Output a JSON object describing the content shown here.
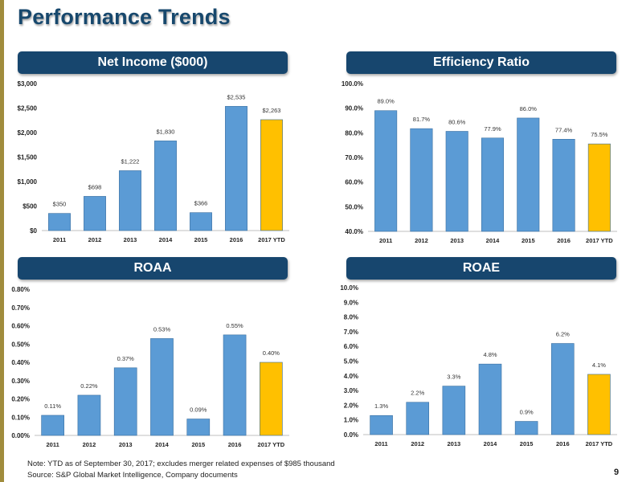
{
  "title": "Performance Trends",
  "colors": {
    "bar": "#5b9bd5",
    "highlight": "#ffc000",
    "header": "#17466e",
    "title": "#17486d"
  },
  "chart_data": [
    {
      "type": "bar",
      "title": "Net Income ($000)",
      "categories": [
        "2011",
        "2012",
        "2013",
        "2014",
        "2015",
        "2016",
        "2017 YTD"
      ],
      "values": [
        350,
        698,
        1222,
        1830,
        366,
        2535,
        2263
      ],
      "data_labels": [
        "$350",
        "$698",
        "$1,222",
        "$1,830",
        "$366",
        "$2,535",
        "$2,263"
      ],
      "ylim": [
        0,
        3000
      ],
      "yticks": [
        "$0",
        "$500",
        "$1,000",
        "$1,500",
        "$2,000",
        "$2,500",
        "$3,000"
      ],
      "highlight_index": 6
    },
    {
      "type": "bar",
      "title": "Efficiency Ratio",
      "categories": [
        "2011",
        "2012",
        "2013",
        "2014",
        "2015",
        "2016",
        "2017 YTD"
      ],
      "values": [
        89.0,
        81.7,
        80.6,
        77.9,
        86.0,
        77.4,
        75.5
      ],
      "data_labels": [
        "89.0%",
        "81.7%",
        "80.6%",
        "77.9%",
        "86.0%",
        "77.4%",
        "75.5%"
      ],
      "ylim": [
        40,
        100
      ],
      "yticks": [
        "40.0%",
        "50.0%",
        "60.0%",
        "70.0%",
        "80.0%",
        "90.0%",
        "100.0%"
      ],
      "highlight_index": 6
    },
    {
      "type": "bar",
      "title": "ROAA",
      "categories": [
        "2011",
        "2012",
        "2013",
        "2014",
        "2015",
        "2016",
        "2017 YTD"
      ],
      "values": [
        0.11,
        0.22,
        0.37,
        0.53,
        0.09,
        0.55,
        0.4
      ],
      "data_labels": [
        "0.11%",
        "0.22%",
        "0.37%",
        "0.53%",
        "0.09%",
        "0.55%",
        "0.40%"
      ],
      "ylim": [
        0,
        0.8
      ],
      "yticks": [
        "0.00%",
        "0.10%",
        "0.20%",
        "0.30%",
        "0.40%",
        "0.50%",
        "0.60%",
        "0.70%",
        "0.80%"
      ],
      "highlight_index": 6
    },
    {
      "type": "bar",
      "title": "ROAE",
      "categories": [
        "2011",
        "2012",
        "2013",
        "2014",
        "2015",
        "2016",
        "2017 YTD"
      ],
      "values": [
        1.3,
        2.2,
        3.3,
        4.8,
        0.9,
        6.2,
        4.1
      ],
      "data_labels": [
        "1.3%",
        "2.2%",
        "3.3%",
        "4.8%",
        "0.9%",
        "6.2%",
        "4.1%"
      ],
      "ylim": [
        0,
        10
      ],
      "yticks": [
        "0.0%",
        "1.0%",
        "2.0%",
        "3.0%",
        "4.0%",
        "5.0%",
        "6.0%",
        "7.0%",
        "8.0%",
        "9.0%",
        "10.0%"
      ],
      "highlight_index": 6
    }
  ],
  "footnotes": {
    "note": "Note: YTD as of September 30, 2017; excludes merger related expenses of $985 thousand",
    "source": "Source: S&P Global Market Intelligence, Company documents"
  },
  "page_number": "9"
}
